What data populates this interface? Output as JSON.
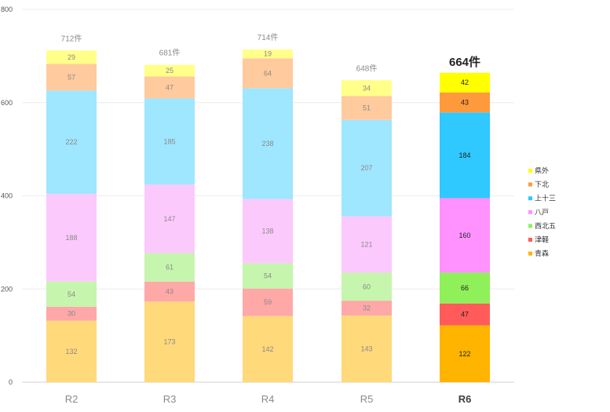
{
  "chart_data": {
    "type": "bar",
    "stacked": true,
    "categories": [
      "R2",
      "R3",
      "R4",
      "R5",
      "R6"
    ],
    "highlight_category": "R6",
    "ylim": [
      0,
      800
    ],
    "yticks": [
      0,
      200,
      400,
      600,
      800
    ],
    "totals": [
      "712件",
      "681件",
      "714件",
      "648件",
      "664件"
    ],
    "legend_position": "right",
    "series": [
      {
        "name": "青森",
        "values": [
          132,
          173,
          142,
          143,
          122
        ],
        "color": "#ffd97a",
        "highlight_color": "#ffb400"
      },
      {
        "name": "津軽",
        "values": [
          30,
          43,
          59,
          32,
          47
        ],
        "color": "#ffa8a8",
        "highlight_color": "#ff5b5b"
      },
      {
        "name": "西北五",
        "values": [
          54,
          61,
          54,
          60,
          66
        ],
        "color": "#c6f5ad",
        "highlight_color": "#8ff05a"
      },
      {
        "name": "八戸",
        "values": [
          188,
          147,
          138,
          121,
          160
        ],
        "color": "#fcc9fc",
        "highlight_color": "#ff92ff"
      },
      {
        "name": "上十三",
        "values": [
          222,
          185,
          238,
          207,
          184
        ],
        "color": "#9fe6ff",
        "highlight_color": "#2fc8ff"
      },
      {
        "name": "下北",
        "values": [
          57,
          47,
          64,
          51,
          43
        ],
        "color": "#ffca9e",
        "highlight_color": "#ff9a3c"
      },
      {
        "name": "県外",
        "values": [
          29,
          25,
          19,
          34,
          42
        ],
        "color": "#ffff8a",
        "highlight_color": "#ffff00"
      }
    ]
  }
}
